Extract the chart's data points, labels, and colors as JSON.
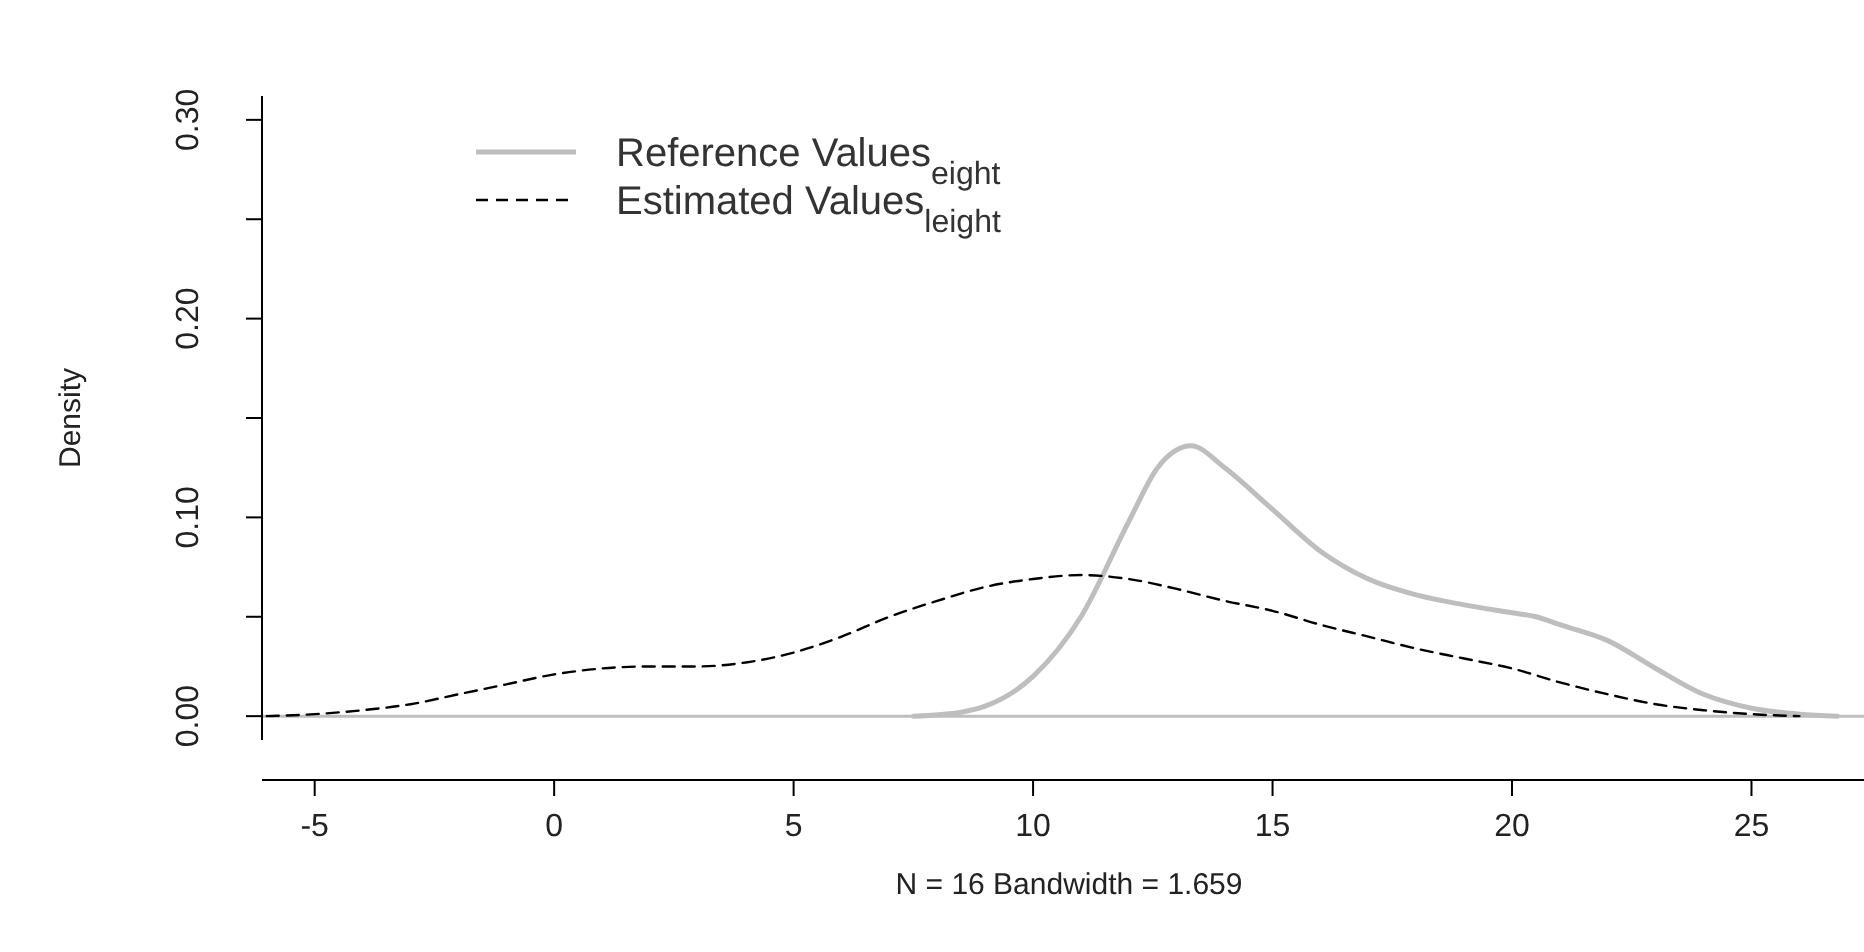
{
  "chart_data": {
    "type": "line",
    "xlabel": "N = 16   Bandwidth = 1.659",
    "ylabel": "Density",
    "legend": "top left",
    "grid": false,
    "marker": "none",
    "xlim": [
      -6.1,
      27.6
    ],
    "ylim": [
      -0.012,
      0.312
    ],
    "xticks": [
      -5,
      0,
      5,
      10,
      15,
      20,
      25
    ],
    "yticks": [
      {
        "value": 0,
        "label": "0.00"
      },
      {
        "value": 0.05,
        "label": null
      },
      {
        "value": 0.1,
        "label": "0.10"
      },
      {
        "value": 0.15,
        "label": null
      },
      {
        "value": 0.2,
        "label": "0.20"
      },
      {
        "value": 0.25,
        "label": null
      },
      {
        "value": 0.3,
        "label": "0.30"
      }
    ],
    "ref_lines": [
      {
        "axis": "y",
        "value": 0,
        "color": "#bebebe",
        "line_style": "solid"
      }
    ],
    "series": [
      {
        "name": "Reference Values$_{eight}$",
        "color": "#bebebe",
        "line_style": "solid",
        "x": [
          7.5,
          8.5,
          9,
          10,
          11,
          12,
          12.6,
          13.3,
          14,
          15,
          16,
          17,
          18,
          19,
          20,
          20.5,
          21,
          22,
          23,
          24,
          25,
          26,
          26.8
        ],
        "values": [
          0,
          0.002,
          0.005,
          0.02,
          0.05,
          0.098,
          0.125,
          0.136,
          0.125,
          0.104,
          0.083,
          0.069,
          0.061,
          0.056,
          0.052,
          0.05,
          0.046,
          0.038,
          0.024,
          0.011,
          0.004,
          0.001,
          0
        ]
      },
      {
        "name": "Estimated Values$_{leight}$",
        "color": "#000000",
        "line_style": "dashed",
        "x": [
          -6,
          -5,
          -4,
          -3,
          -2,
          -1,
          0,
          1,
          2,
          3,
          4,
          5,
          6,
          7,
          8,
          9,
          10,
          11,
          12,
          13,
          14,
          15,
          16,
          17,
          18,
          19,
          20,
          21,
          22,
          23,
          24,
          25,
          26
        ],
        "values": [
          0,
          0.001,
          0.003,
          0.006,
          0.011,
          0.016,
          0.021,
          0.024,
          0.025,
          0.025,
          0.027,
          0.032,
          0.04,
          0.05,
          0.058,
          0.065,
          0.069,
          0.071,
          0.069,
          0.064,
          0.058,
          0.053,
          0.046,
          0.04,
          0.034,
          0.029,
          0.024,
          0.017,
          0.011,
          0.006,
          0.003,
          0.001,
          0
        ]
      }
    ]
  }
}
